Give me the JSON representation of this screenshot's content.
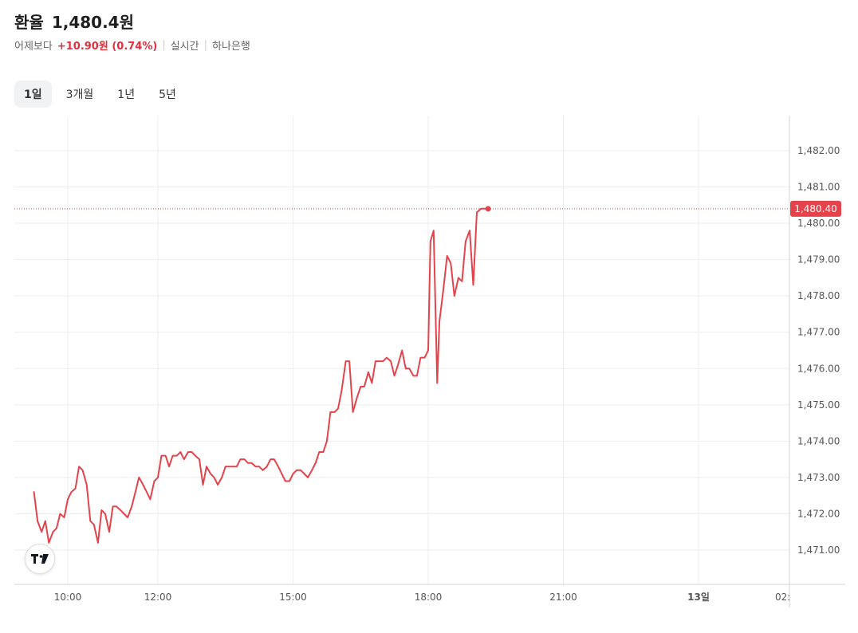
{
  "header": {
    "title_label": "환율",
    "title_value": "1,480.4원",
    "compare_label": "어제보다",
    "change": "+10.90원 (0.74%)",
    "mode": "실시간",
    "source": "하나은행"
  },
  "tabs": [
    {
      "label": "1일",
      "active": true
    },
    {
      "label": "3개월",
      "active": false
    },
    {
      "label": "1년",
      "active": false
    },
    {
      "label": "5년",
      "active": false
    }
  ],
  "colors": {
    "line": "#e5434c",
    "accent_badge": "#e5434c",
    "grid": "#eeeeee"
  },
  "chart_data": {
    "type": "line",
    "title": "",
    "xlabel": "",
    "ylabel": "",
    "ylim": [
      1470.2,
      1482.8
    ],
    "xlim": [
      9.5,
      26.0
    ],
    "y_ticks": [
      1471.0,
      1472.0,
      1473.0,
      1474.0,
      1475.0,
      1476.0,
      1477.0,
      1478.0,
      1479.0,
      1480.0,
      1481.0,
      1482.0
    ],
    "y_tick_labels": [
      "1,471.00",
      "1,472.00",
      "1,473.00",
      "1,474.00",
      "1,475.00",
      "1,476.00",
      "1,477.00",
      "1,478.00",
      "1,479.00",
      "1,480.00",
      "1,481.00",
      "1,482.00"
    ],
    "x_ticks": [
      {
        "x": 10,
        "label": "10:00"
      },
      {
        "x": 12,
        "label": "12:00"
      },
      {
        "x": 15,
        "label": "15:00"
      },
      {
        "x": 18,
        "label": "18:00"
      },
      {
        "x": 21,
        "label": "21:00"
      },
      {
        "x": 24,
        "label": "13일"
      },
      {
        "x": 26,
        "label": "02:"
      }
    ],
    "last_value": 1480.4,
    "last_value_label": "1,480.40",
    "grid": true,
    "series": [
      {
        "x": [
          9.25,
          9.33,
          9.42,
          9.5,
          9.58,
          9.67,
          9.75,
          9.83,
          9.92,
          10.0,
          10.08,
          10.17,
          10.25,
          10.33,
          10.42,
          10.5,
          10.58,
          10.67,
          10.75,
          10.83,
          10.92,
          11.0,
          11.08,
          11.17,
          11.25,
          11.33,
          11.42,
          11.5,
          11.58,
          11.67,
          11.75,
          11.83,
          11.92,
          12.0,
          12.08,
          12.17,
          12.25,
          12.33,
          12.42,
          12.5,
          12.58,
          12.67,
          12.75,
          12.83,
          12.92,
          13.0,
          13.08,
          13.17,
          13.25,
          13.33,
          13.42,
          13.5,
          13.58,
          13.67,
          13.75,
          13.83,
          13.92,
          14.0,
          14.08,
          14.17,
          14.25,
          14.33,
          14.42,
          14.5,
          14.58,
          14.67,
          14.75,
          14.83,
          14.92,
          15.0,
          15.08,
          15.17,
          15.25,
          15.33,
          15.42,
          15.5,
          15.58,
          15.67,
          15.75,
          15.83,
          15.92,
          16.0,
          16.08,
          16.17,
          16.25,
          16.33,
          16.42,
          16.5,
          16.58,
          16.67,
          16.75,
          16.83,
          16.92,
          17.0,
          17.08,
          17.17,
          17.25,
          17.33,
          17.42,
          17.5,
          17.58,
          17.67,
          17.75,
          17.83,
          17.92,
          18.0,
          18.05,
          18.12,
          18.2,
          18.25,
          18.33,
          18.42,
          18.5,
          18.58,
          18.67,
          18.75,
          18.83,
          18.92,
          19.0,
          19.08,
          19.17,
          19.25,
          19.33
        ],
        "y": [
          1472.6,
          1471.8,
          1471.5,
          1471.8,
          1471.2,
          1471.5,
          1471.6,
          1472.0,
          1471.9,
          1472.4,
          1472.6,
          1472.7,
          1473.3,
          1473.2,
          1472.8,
          1471.8,
          1471.7,
          1471.2,
          1472.1,
          1472.0,
          1471.5,
          1472.2,
          1472.2,
          1472.1,
          1472.0,
          1471.9,
          1472.2,
          1472.6,
          1473.0,
          1472.8,
          1472.6,
          1472.4,
          1472.9,
          1473.0,
          1473.6,
          1473.6,
          1473.3,
          1473.6,
          1473.6,
          1473.7,
          1473.5,
          1473.7,
          1473.7,
          1473.6,
          1473.5,
          1472.8,
          1473.3,
          1473.1,
          1473.0,
          1472.8,
          1473.0,
          1473.3,
          1473.3,
          1473.3,
          1473.3,
          1473.5,
          1473.5,
          1473.4,
          1473.4,
          1473.3,
          1473.3,
          1473.2,
          1473.3,
          1473.5,
          1473.5,
          1473.3,
          1473.1,
          1472.9,
          1472.9,
          1473.1,
          1473.2,
          1473.2,
          1473.1,
          1473.0,
          1473.2,
          1473.4,
          1473.7,
          1473.7,
          1474.0,
          1474.8,
          1474.8,
          1474.9,
          1475.4,
          1476.2,
          1476.2,
          1474.8,
          1475.2,
          1475.5,
          1475.5,
          1475.9,
          1475.6,
          1476.2,
          1476.2,
          1476.2,
          1476.3,
          1476.2,
          1475.8,
          1476.1,
          1476.5,
          1476.0,
          1476.0,
          1475.8,
          1475.8,
          1476.3,
          1476.3,
          1476.5,
          1479.5,
          1479.8,
          1475.6,
          1477.3,
          1478.1,
          1479.1,
          1478.9,
          1478.0,
          1478.5,
          1478.4,
          1479.5,
          1479.8,
          1478.3,
          1480.3,
          1480.4,
          1480.4,
          1480.4
        ]
      }
    ]
  }
}
